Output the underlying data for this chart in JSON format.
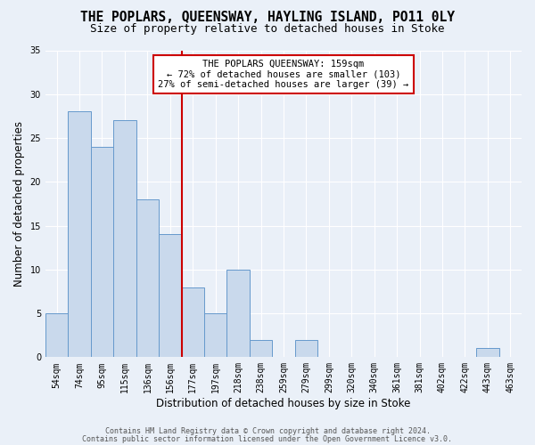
{
  "title": "THE POPLARS, QUEENSWAY, HAYLING ISLAND, PO11 0LY",
  "subtitle": "Size of property relative to detached houses in Stoke",
  "xlabel": "Distribution of detached houses by size in Stoke",
  "ylabel": "Number of detached properties",
  "categories": [
    "54sqm",
    "74sqm",
    "95sqm",
    "115sqm",
    "136sqm",
    "156sqm",
    "177sqm",
    "197sqm",
    "218sqm",
    "238sqm",
    "259sqm",
    "279sqm",
    "299sqm",
    "320sqm",
    "340sqm",
    "361sqm",
    "381sqm",
    "402sqm",
    "422sqm",
    "443sqm",
    "463sqm"
  ],
  "values": [
    5,
    28,
    24,
    27,
    18,
    14,
    8,
    5,
    10,
    2,
    0,
    2,
    0,
    0,
    0,
    0,
    0,
    0,
    0,
    1,
    0
  ],
  "bar_color": "#c9d9ec",
  "bar_edge_color": "#6699cc",
  "background_color": "#eaf0f8",
  "grid_color": "#ffffff",
  "red_line_x": 5.5,
  "annotation_line1": "THE POPLARS QUEENSWAY: 159sqm",
  "annotation_line2": "← 72% of detached houses are smaller (103)",
  "annotation_line3": "27% of semi-detached houses are larger (39) →",
  "annotation_box_color": "#ffffff",
  "annotation_box_edge": "#cc0000",
  "red_line_color": "#cc0000",
  "footer_line1": "Contains HM Land Registry data © Crown copyright and database right 2024.",
  "footer_line2": "Contains public sector information licensed under the Open Government Licence v3.0.",
  "ylim": [
    0,
    35
  ],
  "yticks": [
    0,
    5,
    10,
    15,
    20,
    25,
    30,
    35
  ],
  "title_fontsize": 10.5,
  "subtitle_fontsize": 9,
  "ylabel_fontsize": 8.5,
  "xlabel_fontsize": 8.5,
  "tick_fontsize": 7,
  "annotation_fontsize": 7.5,
  "footer_fontsize": 6
}
